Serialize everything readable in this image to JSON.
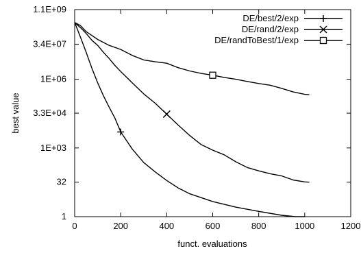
{
  "chart_data": {
    "type": "line",
    "title": "",
    "xlabel": "funct. evaluations",
    "ylabel": "best value",
    "xlim": [
      0,
      1200
    ],
    "ylim": [
      1,
      1100000000
    ],
    "yscale": "log",
    "grid": false,
    "legend_position": "top-right",
    "x_ticks": [
      {
        "value": 0,
        "label": "0"
      },
      {
        "value": 200,
        "label": "200"
      },
      {
        "value": 400,
        "label": "400"
      },
      {
        "value": 600,
        "label": "600"
      },
      {
        "value": 800,
        "label": "800"
      },
      {
        "value": 1000,
        "label": "1000"
      },
      {
        "value": 1200,
        "label": "1200"
      }
    ],
    "y_ticks": [
      {
        "value": 1,
        "label": "1"
      },
      {
        "value": 32,
        "label": "32"
      },
      {
        "value": 1000,
        "label": "1E+03"
      },
      {
        "value": 33000,
        "label": "3.3E+04"
      },
      {
        "value": 1000000,
        "label": "1E+06"
      },
      {
        "value": 34000000,
        "label": "3.4E+07"
      },
      {
        "value": 1100000000,
        "label": "1.1E+09"
      }
    ],
    "series": [
      {
        "name": "DE/best/2/exp",
        "marker": "plus",
        "marker_x": 200,
        "color": "#000000",
        "x": [
          0,
          25,
          50,
          75,
          100,
          125,
          150,
          175,
          200,
          250,
          300,
          350,
          400,
          450,
          500,
          600,
          700,
          800,
          900,
          960,
          1000
        ],
        "y": [
          300000000,
          70000000,
          15000000,
          3000000,
          700000,
          190000,
          60000,
          20000,
          5000,
          900,
          230,
          90,
          38,
          18,
          10,
          4.6,
          2.6,
          1.7,
          1.15,
          1,
          1
        ]
      },
      {
        "name": "DE/rand/2/exp",
        "marker": "x",
        "marker_x": 400,
        "color": "#000000",
        "x": [
          0,
          25,
          50,
          75,
          100,
          125,
          150,
          175,
          200,
          250,
          300,
          350,
          400,
          450,
          500,
          550,
          600,
          650,
          700,
          750,
          800,
          850,
          900,
          950,
          1000,
          1020
        ],
        "y": [
          300000000,
          180000000,
          100000000,
          50000000,
          30000000,
          15000000,
          8000000,
          4000000,
          2200000,
          700000,
          230000,
          90000,
          30000,
          10000,
          3500,
          1400,
          800,
          500,
          250,
          140,
          100,
          75,
          60,
          40,
          33,
          32
        ]
      },
      {
        "name": "DE/randToBest/1/exp",
        "marker": "square",
        "marker_x": 600,
        "color": "#000000",
        "x": [
          0,
          25,
          50,
          100,
          150,
          200,
          250,
          300,
          350,
          400,
          450,
          500,
          550,
          600,
          650,
          700,
          750,
          800,
          850,
          900,
          950,
          1000,
          1020
        ],
        "y": [
          300000000,
          220000000,
          120000000,
          55000000,
          30000000,
          20000000,
          11000000,
          7000000,
          5800000,
          5000000,
          3200000,
          2300000,
          1800000,
          1500000,
          1200000,
          1000000,
          800000,
          650000,
          550000,
          400000,
          280000,
          220000,
          210000
        ]
      }
    ]
  }
}
